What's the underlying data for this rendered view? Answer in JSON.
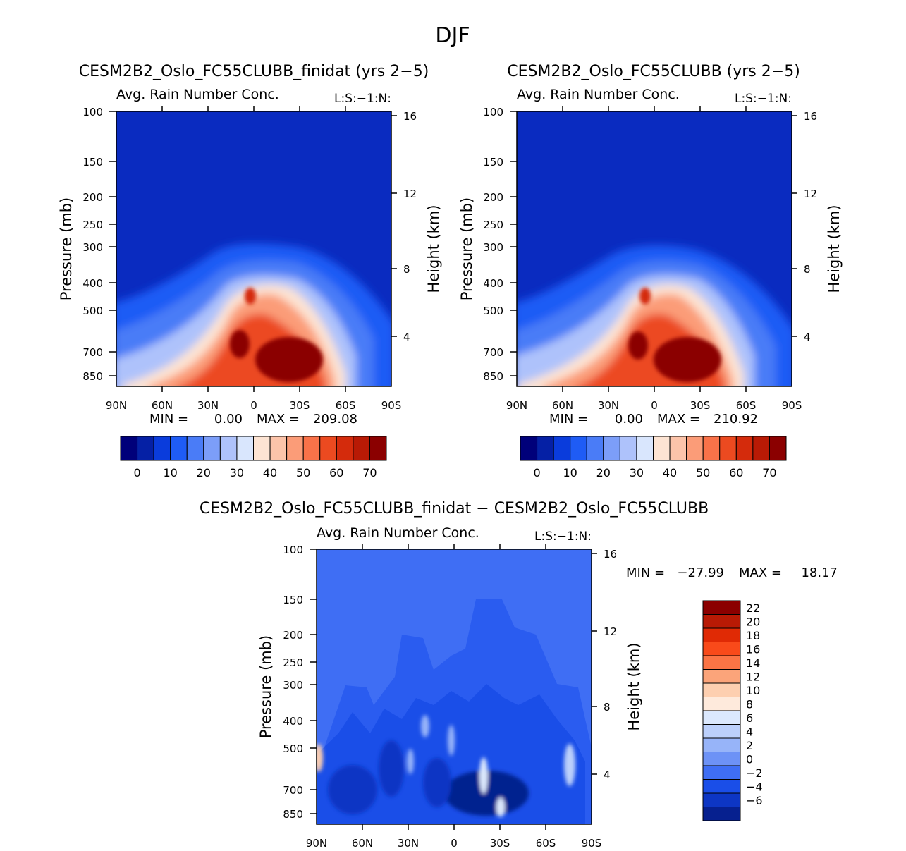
{
  "figure_title": "DJF",
  "chart_data": [
    {
      "type": "heatmap",
      "title": "CESM2B2_Oslo_FC55CLUBB_finidat (yrs 2−5)",
      "subtitle": "Avg. Rain Number Conc.",
      "corner_label": "L:S:−1:N:",
      "ylabel": "Pressure (mb)",
      "y2label": "Height (km)",
      "x_ticks": [
        "90N",
        "60N",
        "30N",
        "0",
        "30S",
        "60S",
        "90S"
      ],
      "y_ticks": [
        "100",
        "150",
        "200",
        "250",
        "300",
        "400",
        "500",
        "700",
        "850"
      ],
      "y2_ticks": [
        "16",
        "12",
        "8",
        "4"
      ],
      "min_label": "MIN =",
      "min_value": "0.00",
      "max_label": "MAX =",
      "max_value": "209.08",
      "min": 0.0,
      "max": 209.08,
      "colorbar": {
        "orientation": "horizontal",
        "labels": [
          "0",
          "10",
          "20",
          "30",
          "40",
          "50",
          "60",
          "70"
        ],
        "colors": [
          "#00007a",
          "#0520a5",
          "#0a3cdc",
          "#1f5cf5",
          "#4a7cf7",
          "#7c9ef9",
          "#aec2fb",
          "#d9e6fd",
          "#fde4d3",
          "#fcc4aa",
          "#fb9c78",
          "#f97249",
          "#ec4a20",
          "#d42b0c",
          "#b81a05",
          "#8b0000"
        ]
      }
    },
    {
      "type": "heatmap",
      "title": "CESM2B2_Oslo_FC55CLUBB (yrs 2−5)",
      "subtitle": "Avg. Rain Number Conc.",
      "corner_label": "L:S:−1:N:",
      "ylabel": "Pressure (mb)",
      "y2label": "Height (km)",
      "x_ticks": [
        "90N",
        "60N",
        "30N",
        "0",
        "30S",
        "60S",
        "90S"
      ],
      "y_ticks": [
        "100",
        "150",
        "200",
        "250",
        "300",
        "400",
        "500",
        "700",
        "850"
      ],
      "y2_ticks": [
        "16",
        "12",
        "8",
        "4"
      ],
      "min_label": "MIN =",
      "min_value": "0.00",
      "max_label": "MAX =",
      "max_value": "210.92",
      "min": 0.0,
      "max": 210.92,
      "colorbar": {
        "orientation": "horizontal",
        "labels": [
          "0",
          "10",
          "20",
          "30",
          "40",
          "50",
          "60",
          "70"
        ],
        "colors": [
          "#00007a",
          "#0520a5",
          "#0a3cdc",
          "#1f5cf5",
          "#4a7cf7",
          "#7c9ef9",
          "#aec2fb",
          "#d9e6fd",
          "#fde4d3",
          "#fcc4aa",
          "#fb9c78",
          "#f97249",
          "#ec4a20",
          "#d42b0c",
          "#b81a05",
          "#8b0000"
        ]
      }
    },
    {
      "type": "heatmap",
      "title": "CESM2B2_Oslo_FC55CLUBB_finidat − CESM2B2_Oslo_FC55CLUBB",
      "subtitle": "Avg. Rain Number Conc.",
      "corner_label": "L:S:−1:N:",
      "ylabel": "Pressure (mb)",
      "y2label": "Height (km)",
      "x_ticks": [
        "90N",
        "60N",
        "30N",
        "0",
        "30S",
        "60S",
        "90S"
      ],
      "y_ticks": [
        "100",
        "150",
        "200",
        "250",
        "300",
        "400",
        "500",
        "700",
        "850"
      ],
      "y2_ticks": [
        "16",
        "12",
        "8",
        "4"
      ],
      "min_label": "MIN =",
      "min_value": "−27.99",
      "max_label": "MAX =",
      "max_value": "18.17",
      "min": -27.99,
      "max": 18.17,
      "colorbar": {
        "orientation": "vertical",
        "labels": [
          "22",
          "20",
          "18",
          "16",
          "14",
          "12",
          "10",
          "8",
          "6",
          "4",
          "2",
          "0",
          "−2",
          "−4",
          "−6"
        ],
        "colors": [
          "#8b0000",
          "#b81a05",
          "#e02a05",
          "#f94a1a",
          "#fb7445",
          "#fba47a",
          "#fdcfb0",
          "#feeadc",
          "#dbe8fd",
          "#bcd0fb",
          "#97b4f9",
          "#6d92f6",
          "#3f6ef4",
          "#1a4ee8",
          "#0d36c4",
          "#06208f"
        ]
      }
    }
  ]
}
